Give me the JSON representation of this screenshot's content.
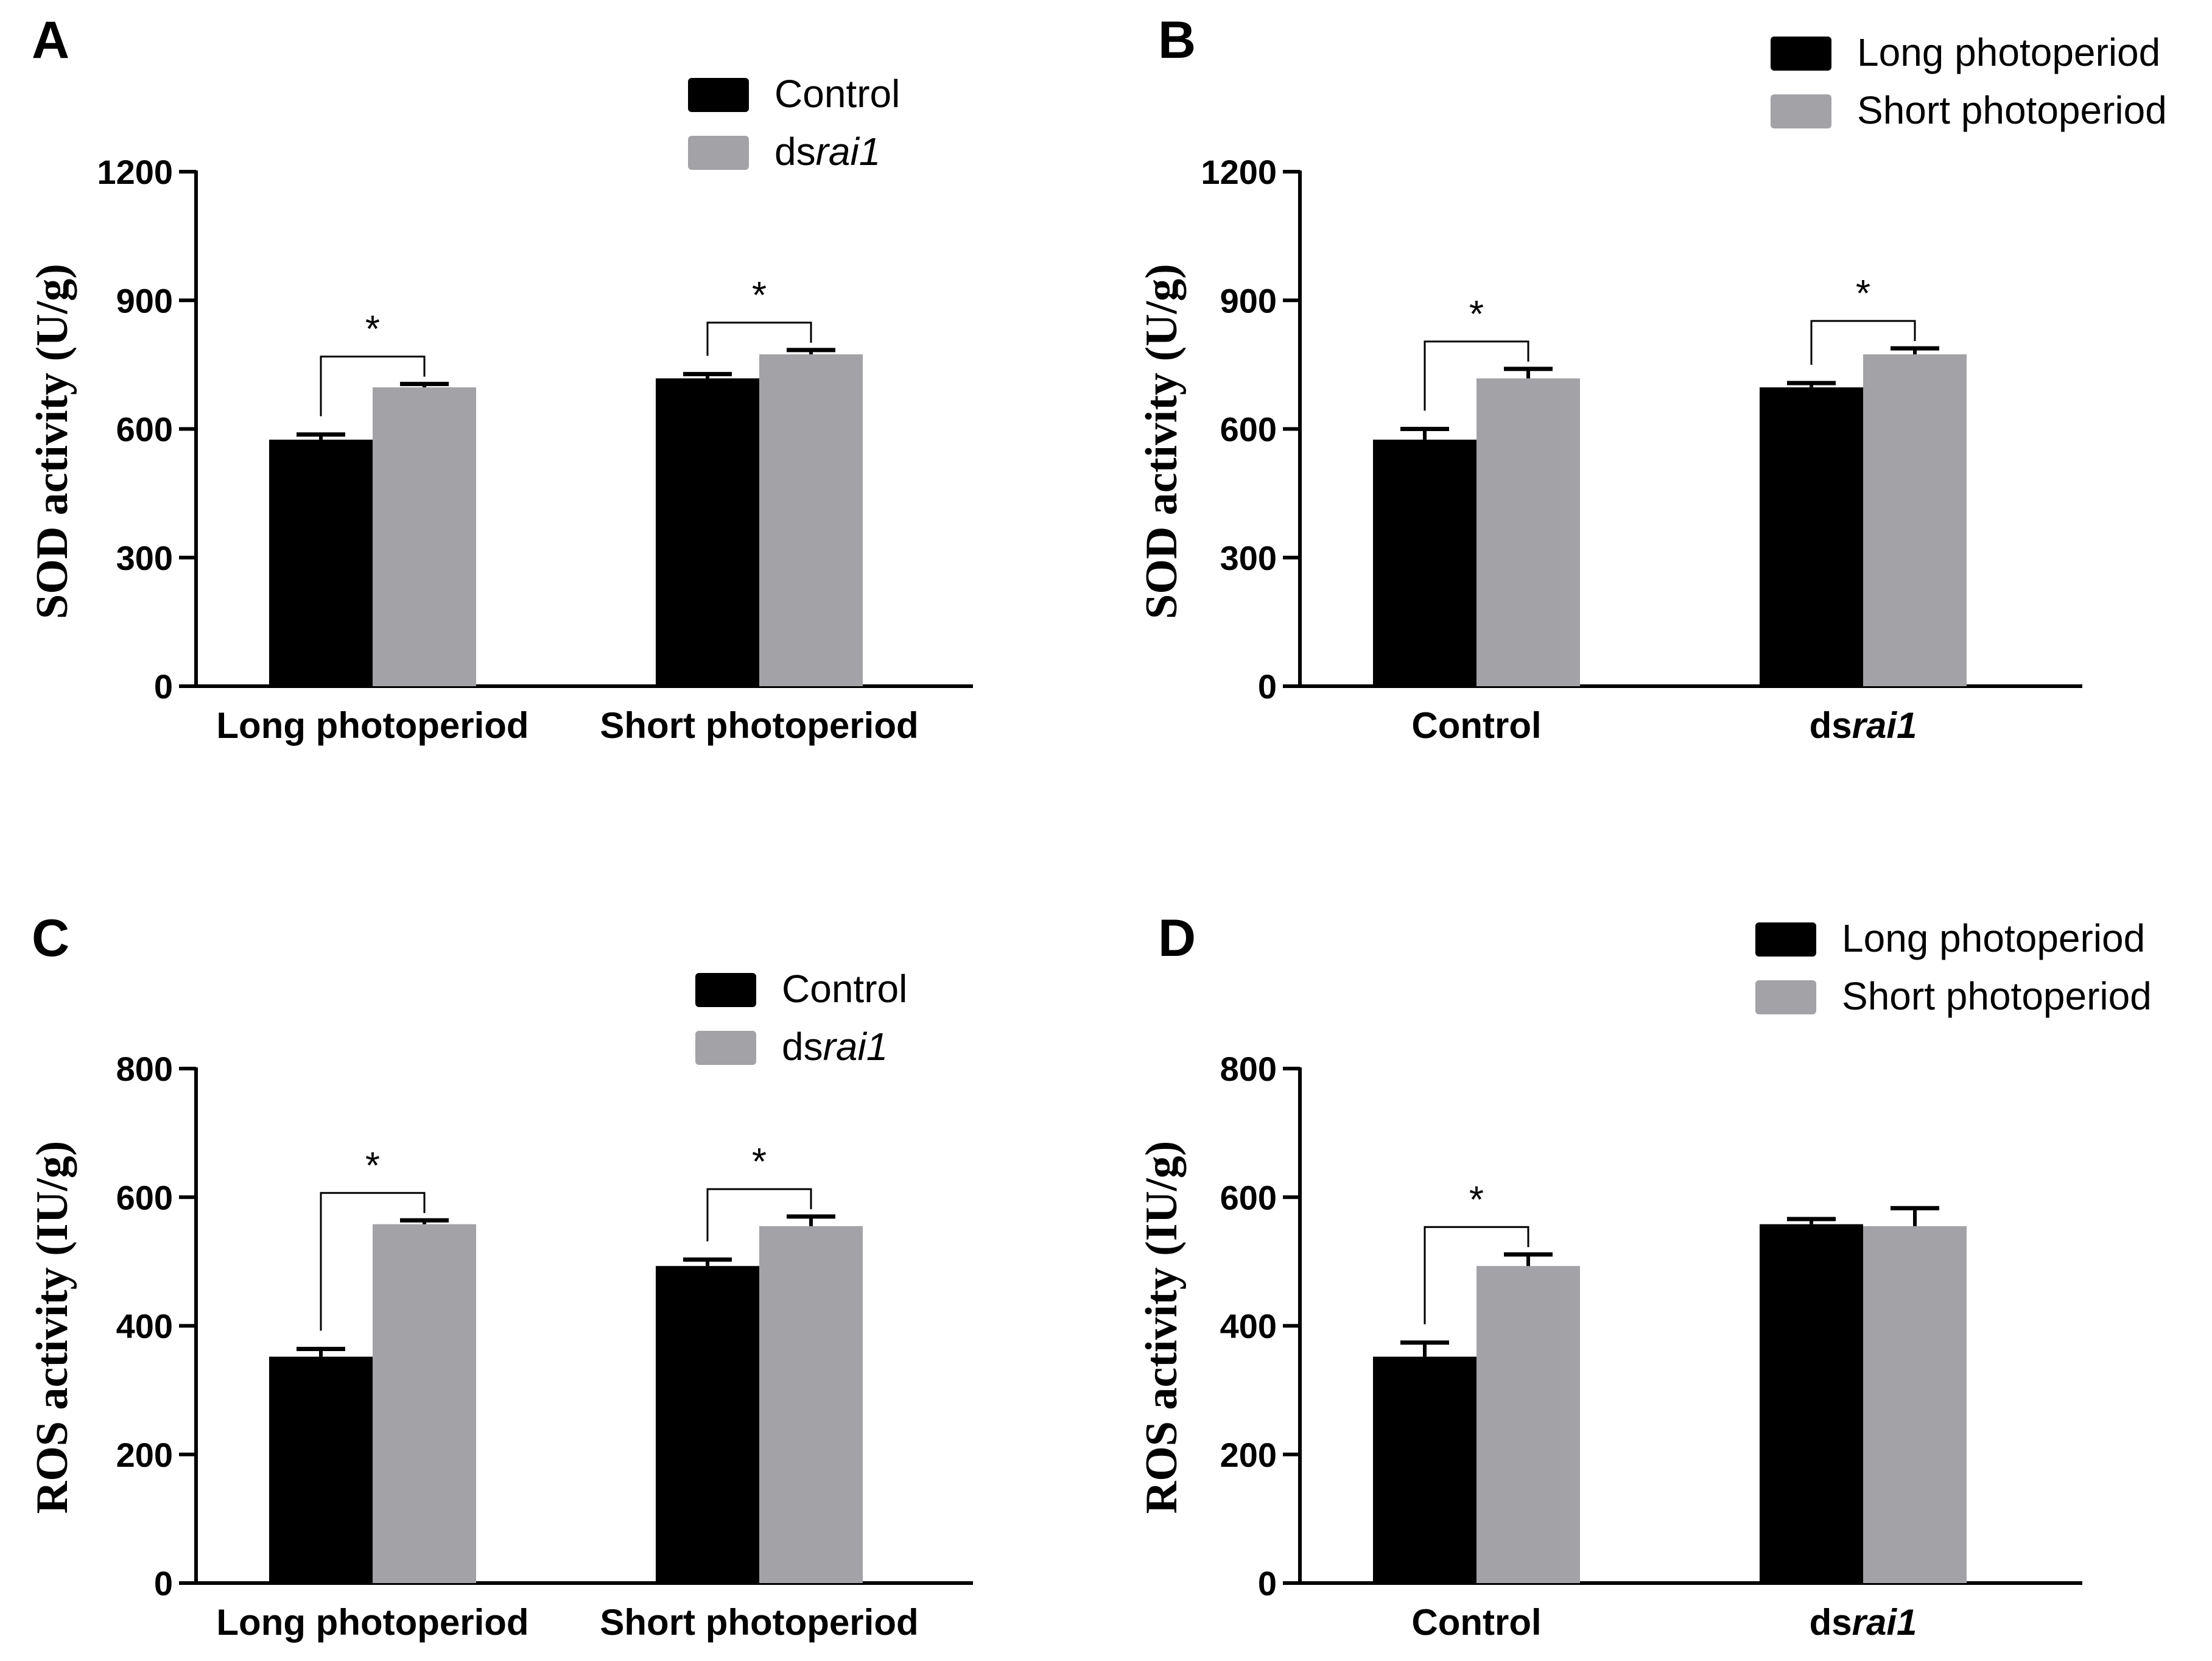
{
  "chart_data": [
    {
      "panel": "A",
      "type": "bar",
      "ylabel": "SOD activity (U/g)",
      "ylim": [
        0,
        1200
      ],
      "yticks": [
        0,
        300,
        600,
        900,
        1200
      ],
      "categories": [
        "Long photoperiod",
        "Short photoperiod"
      ],
      "series": [
        {
          "name": "Control",
          "color": "#000000",
          "values": [
            575,
            718
          ],
          "errors": [
            12,
            10
          ]
        },
        {
          "name": "dsrai1",
          "color": "#a3a3a7",
          "values": [
            697,
            774
          ],
          "errors": [
            8,
            10
          ]
        }
      ],
      "significance": [
        {
          "category": "Long photoperiod",
          "label": "*"
        },
        {
          "category": "Short photoperiod",
          "label": "*"
        }
      ],
      "legend_position": "top-right"
    },
    {
      "panel": "B",
      "type": "bar",
      "ylabel": "SOD activity (U/g)",
      "ylim": [
        0,
        1200
      ],
      "yticks": [
        0,
        300,
        600,
        900,
        1200
      ],
      "categories": [
        "Control",
        "dsrai1"
      ],
      "series": [
        {
          "name": "Long photoperiod",
          "color": "#000000",
          "values": [
            575,
            697
          ],
          "errors": [
            25,
            10
          ]
        },
        {
          "name": "Short photoperiod",
          "color": "#a3a3a7",
          "values": [
            718,
            774
          ],
          "errors": [
            22,
            14
          ]
        }
      ],
      "significance": [
        {
          "category": "Control",
          "label": "*"
        },
        {
          "category": "dsrai1",
          "label": "*"
        }
      ],
      "legend_position": "top-right"
    },
    {
      "panel": "C",
      "type": "bar",
      "ylabel": "ROS activity (IU/g)",
      "ylim": [
        0,
        800
      ],
      "yticks": [
        0,
        200,
        400,
        600,
        800
      ],
      "categories": [
        "Long photoperiod",
        "Short photoperiod"
      ],
      "series": [
        {
          "name": "Control",
          "color": "#000000",
          "values": [
            352,
            493
          ],
          "errors": [
            12,
            10
          ]
        },
        {
          "name": "dsrai1",
          "color": "#a3a3a7",
          "values": [
            558,
            555
          ],
          "errors": [
            6,
            15
          ]
        }
      ],
      "significance": [
        {
          "category": "Long photoperiod",
          "label": "*"
        },
        {
          "category": "Short photoperiod",
          "label": "*"
        }
      ],
      "legend_position": "top-right"
    },
    {
      "panel": "D",
      "type": "bar",
      "ylabel": "ROS activity (IU/g)",
      "ylim": [
        0,
        800
      ],
      "yticks": [
        0,
        200,
        400,
        600,
        800
      ],
      "categories": [
        "Control",
        "dsrai1"
      ],
      "series": [
        {
          "name": "Long photoperiod",
          "color": "#000000",
          "values": [
            352,
            558
          ],
          "errors": [
            22,
            8
          ]
        },
        {
          "name": "Short photoperiod",
          "color": "#a3a3a7",
          "values": [
            493,
            555
          ],
          "errors": [
            18,
            28
          ]
        }
      ],
      "significance": [
        {
          "category": "Control",
          "label": "*"
        }
      ],
      "legend_position": "top-right"
    }
  ]
}
